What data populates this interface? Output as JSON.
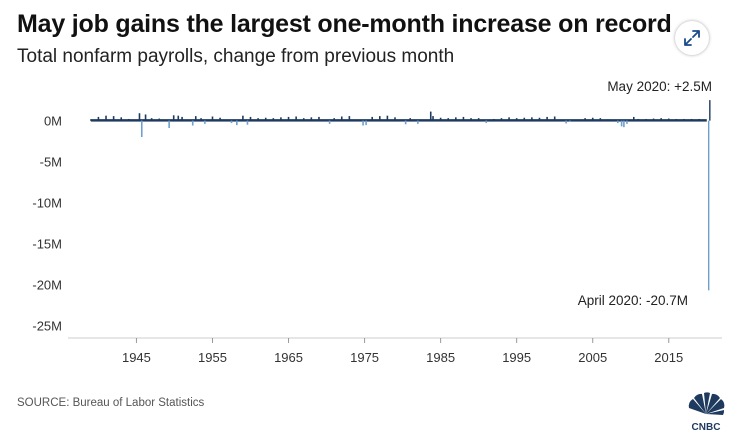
{
  "header": {
    "title": "May job gains the largest one-month increase on record",
    "subtitle": "Total nonfarm payrolls, change from previous month"
  },
  "footer": {
    "source": "SOURCE: Bureau of Labor Statistics",
    "logo_text": "CNBC"
  },
  "controls": {
    "expand_icon": "expand-arrows-icon"
  },
  "colors": {
    "series": "#1f3a5f",
    "negative": "#6f9fcd",
    "axis_text": "#333333",
    "grid": "#cccccc"
  },
  "chart_data": {
    "type": "bar",
    "title": "May job gains the largest one-month increase on record",
    "subtitle": "Total nonfarm payrolls, change from previous month",
    "xlabel": "",
    "ylabel": "",
    "units": "millions of jobs",
    "xlim": [
      1936,
      2022
    ],
    "ylim": [
      -26.5,
      3
    ],
    "y_ticks": [
      0,
      -5,
      -10,
      -15,
      -20,
      -25
    ],
    "y_tick_labels": [
      "0M",
      "-5M",
      "-10M",
      "-15M",
      "-20M",
      "-25M"
    ],
    "x_ticks": [
      1945,
      1955,
      1965,
      1975,
      1985,
      1995,
      2005,
      2015
    ],
    "x_tick_labels": [
      "1945",
      "1955",
      "1965",
      "1975",
      "1985",
      "1995",
      "2005",
      "2015"
    ],
    "grid": false,
    "series": [
      {
        "values_in_millions": [
          {
            "x": 1939.0,
            "y": 0.15
          },
          {
            "x": 1940.0,
            "y": 0.45
          },
          {
            "x": 1941.0,
            "y": 0.6
          },
          {
            "x": 1942.0,
            "y": 0.55
          },
          {
            "x": 1943.0,
            "y": 0.4
          },
          {
            "x": 1944.0,
            "y": 0.2
          },
          {
            "x": 1945.4,
            "y": 0.9
          },
          {
            "x": 1945.7,
            "y": -2.0
          },
          {
            "x": 1946.2,
            "y": 0.75
          },
          {
            "x": 1947.0,
            "y": 0.3
          },
          {
            "x": 1948.0,
            "y": 0.25
          },
          {
            "x": 1949.3,
            "y": -0.9
          },
          {
            "x": 1949.9,
            "y": 0.65
          },
          {
            "x": 1950.5,
            "y": 0.6
          },
          {
            "x": 1951.0,
            "y": 0.45
          },
          {
            "x": 1952.4,
            "y": -0.6
          },
          {
            "x": 1952.8,
            "y": 0.55
          },
          {
            "x": 1953.5,
            "y": 0.3
          },
          {
            "x": 1954.0,
            "y": -0.4
          },
          {
            "x": 1955.0,
            "y": 0.5
          },
          {
            "x": 1956.0,
            "y": 0.35
          },
          {
            "x": 1957.5,
            "y": -0.3
          },
          {
            "x": 1958.2,
            "y": -0.55
          },
          {
            "x": 1959.0,
            "y": 0.6
          },
          {
            "x": 1959.6,
            "y": -0.5
          },
          {
            "x": 1960.0,
            "y": 0.45
          },
          {
            "x": 1961.0,
            "y": 0.3
          },
          {
            "x": 1962.0,
            "y": 0.35
          },
          {
            "x": 1963.0,
            "y": 0.3
          },
          {
            "x": 1964.0,
            "y": 0.4
          },
          {
            "x": 1965.0,
            "y": 0.45
          },
          {
            "x": 1966.0,
            "y": 0.5
          },
          {
            "x": 1967.0,
            "y": 0.3
          },
          {
            "x": 1968.0,
            "y": 0.4
          },
          {
            "x": 1969.0,
            "y": 0.45
          },
          {
            "x": 1970.4,
            "y": -0.4
          },
          {
            "x": 1971.0,
            "y": 0.3
          },
          {
            "x": 1972.0,
            "y": 0.5
          },
          {
            "x": 1973.0,
            "y": 0.55
          },
          {
            "x": 1974.8,
            "y": -0.6
          },
          {
            "x": 1975.2,
            "y": -0.55
          },
          {
            "x": 1976.0,
            "y": 0.45
          },
          {
            "x": 1977.0,
            "y": 0.55
          },
          {
            "x": 1978.0,
            "y": 0.6
          },
          {
            "x": 1979.0,
            "y": 0.4
          },
          {
            "x": 1980.4,
            "y": -0.45
          },
          {
            "x": 1981.0,
            "y": 0.3
          },
          {
            "x": 1982.0,
            "y": -0.4
          },
          {
            "x": 1983.7,
            "y": 1.1
          },
          {
            "x": 1984.0,
            "y": 0.55
          },
          {
            "x": 1985.0,
            "y": 0.35
          },
          {
            "x": 1986.0,
            "y": 0.3
          },
          {
            "x": 1987.0,
            "y": 0.4
          },
          {
            "x": 1988.0,
            "y": 0.45
          },
          {
            "x": 1989.0,
            "y": 0.3
          },
          {
            "x": 1990.0,
            "y": 0.3
          },
          {
            "x": 1991.0,
            "y": -0.3
          },
          {
            "x": 1992.0,
            "y": 0.2
          },
          {
            "x": 1993.0,
            "y": 0.3
          },
          {
            "x": 1994.0,
            "y": 0.4
          },
          {
            "x": 1995.0,
            "y": 0.3
          },
          {
            "x": 1996.0,
            "y": 0.35
          },
          {
            "x": 1997.0,
            "y": 0.4
          },
          {
            "x": 1998.0,
            "y": 0.35
          },
          {
            "x": 1999.0,
            "y": 0.45
          },
          {
            "x": 2000.0,
            "y": 0.5
          },
          {
            "x": 2001.5,
            "y": -0.35
          },
          {
            "x": 2002.0,
            "y": -0.15
          },
          {
            "x": 2003.0,
            "y": 0.1
          },
          {
            "x": 2004.0,
            "y": 0.3
          },
          {
            "x": 2005.0,
            "y": 0.35
          },
          {
            "x": 2006.0,
            "y": 0.3
          },
          {
            "x": 2007.0,
            "y": 0.15
          },
          {
            "x": 2008.3,
            "y": -0.3
          },
          {
            "x": 2008.8,
            "y": -0.7
          },
          {
            "x": 2009.1,
            "y": -0.8
          },
          {
            "x": 2009.5,
            "y": -0.4
          },
          {
            "x": 2010.4,
            "y": 0.45
          },
          {
            "x": 2011.0,
            "y": 0.2
          },
          {
            "x": 2012.0,
            "y": 0.2
          },
          {
            "x": 2013.0,
            "y": 0.25
          },
          {
            "x": 2014.0,
            "y": 0.3
          },
          {
            "x": 2015.0,
            "y": 0.25
          },
          {
            "x": 2016.0,
            "y": 0.2
          },
          {
            "x": 2017.0,
            "y": 0.2
          },
          {
            "x": 2018.0,
            "y": 0.2
          },
          {
            "x": 2019.0,
            "y": 0.2
          },
          {
            "x": 2020.25,
            "y": -20.7
          },
          {
            "x": 2020.4,
            "y": 2.5
          }
        ]
      }
    ],
    "annotations": [
      {
        "text": "May 2020: +2.5M",
        "x": 2020.4,
        "y": 2.5
      },
      {
        "text": "April 2020: -20.7M",
        "x": 2020.25,
        "y": -20.7
      }
    ]
  }
}
